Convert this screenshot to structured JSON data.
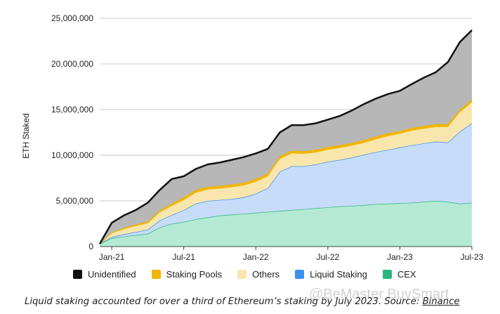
{
  "chart_data": {
    "type": "area",
    "stacked": true,
    "ylabel": "ETH Staked",
    "xlabel": "",
    "ylim": [
      0,
      25000000
    ],
    "yticks": [
      0,
      5000000,
      10000000,
      15000000,
      20000000,
      25000000
    ],
    "ytick_labels": [
      "0",
      "5,000,000",
      "10,000,000",
      "15,000,000",
      "20,000,000",
      "25,000,000"
    ],
    "xtick_labels": [
      "Jan-21",
      "Jul-21",
      "Jan-22",
      "Jul-22",
      "Jan-23",
      "Jul-23"
    ],
    "xtick_dates": [
      "2021-01",
      "2021-07",
      "2022-01",
      "2022-07",
      "2023-01",
      "2023-07"
    ],
    "x": [
      "2020-12",
      "2021-01",
      "2021-02",
      "2021-03",
      "2021-04",
      "2021-05",
      "2021-06",
      "2021-07",
      "2021-08",
      "2021-09",
      "2021-10",
      "2021-11",
      "2021-12",
      "2022-01",
      "2022-02",
      "2022-03",
      "2022-04",
      "2022-05",
      "2022-06",
      "2022-07",
      "2022-08",
      "2022-09",
      "2022-10",
      "2022-11",
      "2022-12",
      "2023-01",
      "2023-02",
      "2023-03",
      "2023-04",
      "2023-05",
      "2023-06",
      "2023-07"
    ],
    "grid": true,
    "legend_position": "bottom",
    "series": [
      {
        "name": "CEX",
        "color": "#2ab57d",
        "fill": "#b4ead3",
        "values": [
          300000,
          900000,
          1100000,
          1250000,
          1400000,
          2100000,
          2500000,
          2700000,
          3000000,
          3200000,
          3400000,
          3500000,
          3600000,
          3700000,
          3800000,
          3900000,
          4000000,
          4100000,
          4200000,
          4300000,
          4400000,
          4450000,
          4550000,
          4650000,
          4700000,
          4750000,
          4800000,
          4900000,
          5000000,
          4900000,
          4700000,
          4800000
        ]
      },
      {
        "name": "Liquid Staking",
        "color": "#3b8ff0",
        "fill": "#c6dcf9",
        "values": [
          0,
          150000,
          250000,
          350000,
          450000,
          750000,
          950000,
          1300000,
          1700000,
          1800000,
          1700000,
          1700000,
          1800000,
          2100000,
          2600000,
          4300000,
          4800000,
          4700000,
          4800000,
          5000000,
          5100000,
          5300000,
          5500000,
          5700000,
          5900000,
          6100000,
          6300000,
          6400000,
          6500000,
          6500000,
          7900000,
          8700000
        ]
      },
      {
        "name": "Others",
        "color": "#f7e2a3",
        "fill": "#f8e6ad",
        "values": [
          0,
          400000,
          550000,
          650000,
          700000,
          900000,
          1000000,
          1100000,
          1200000,
          1250000,
          1250000,
          1300000,
          1300000,
          1300000,
          1300000,
          1400000,
          1400000,
          1350000,
          1300000,
          1300000,
          1300000,
          1300000,
          1300000,
          1400000,
          1500000,
          1500000,
          1600000,
          1600000,
          1600000,
          1700000,
          2100000,
          2300000
        ]
      },
      {
        "name": "Staking Pools",
        "color": "#f1b500",
        "fill": "#f1b500",
        "values": [
          0,
          100000,
          150000,
          150000,
          200000,
          200000,
          250000,
          300000,
          300000,
          300000,
          300000,
          300000,
          300000,
          300000,
          300000,
          300000,
          300000,
          300000,
          300000,
          300000,
          300000,
          300000,
          300000,
          300000,
          300000,
          300000,
          300000,
          300000,
          300000,
          300000,
          300000,
          300000
        ]
      },
      {
        "name": "Unidentified",
        "color": "#111111",
        "fill": "#b7b7b7",
        "values": [
          0,
          1050000,
          1350000,
          1600000,
          2050000,
          2250000,
          2700000,
          2300000,
          2300000,
          2450000,
          2550000,
          2700000,
          2800000,
          2800000,
          2700000,
          2600000,
          2800000,
          2850000,
          2900000,
          3000000,
          3200000,
          3550000,
          3950000,
          4150000,
          4300000,
          4400000,
          4800000,
          5300000,
          5700000,
          6800000,
          7400000,
          7600000
        ]
      }
    ]
  },
  "legend": {
    "items": [
      {
        "label": "Unidentified",
        "color": "#111111"
      },
      {
        "label": "Staking Pools",
        "color": "#f1b500"
      },
      {
        "label": "Others",
        "color": "#f8e6ad"
      },
      {
        "label": "Liquid Staking",
        "color": "#3b8ff0"
      },
      {
        "label": "CEX",
        "color": "#2ab57d"
      }
    ]
  },
  "caption": {
    "text": "Liquid staking accounted for over a third of Ethereum’s staking by July 2023. Source: ",
    "source": "Binance"
  },
  "watermark": {
    "text": "@BeMaster BuySmart"
  }
}
